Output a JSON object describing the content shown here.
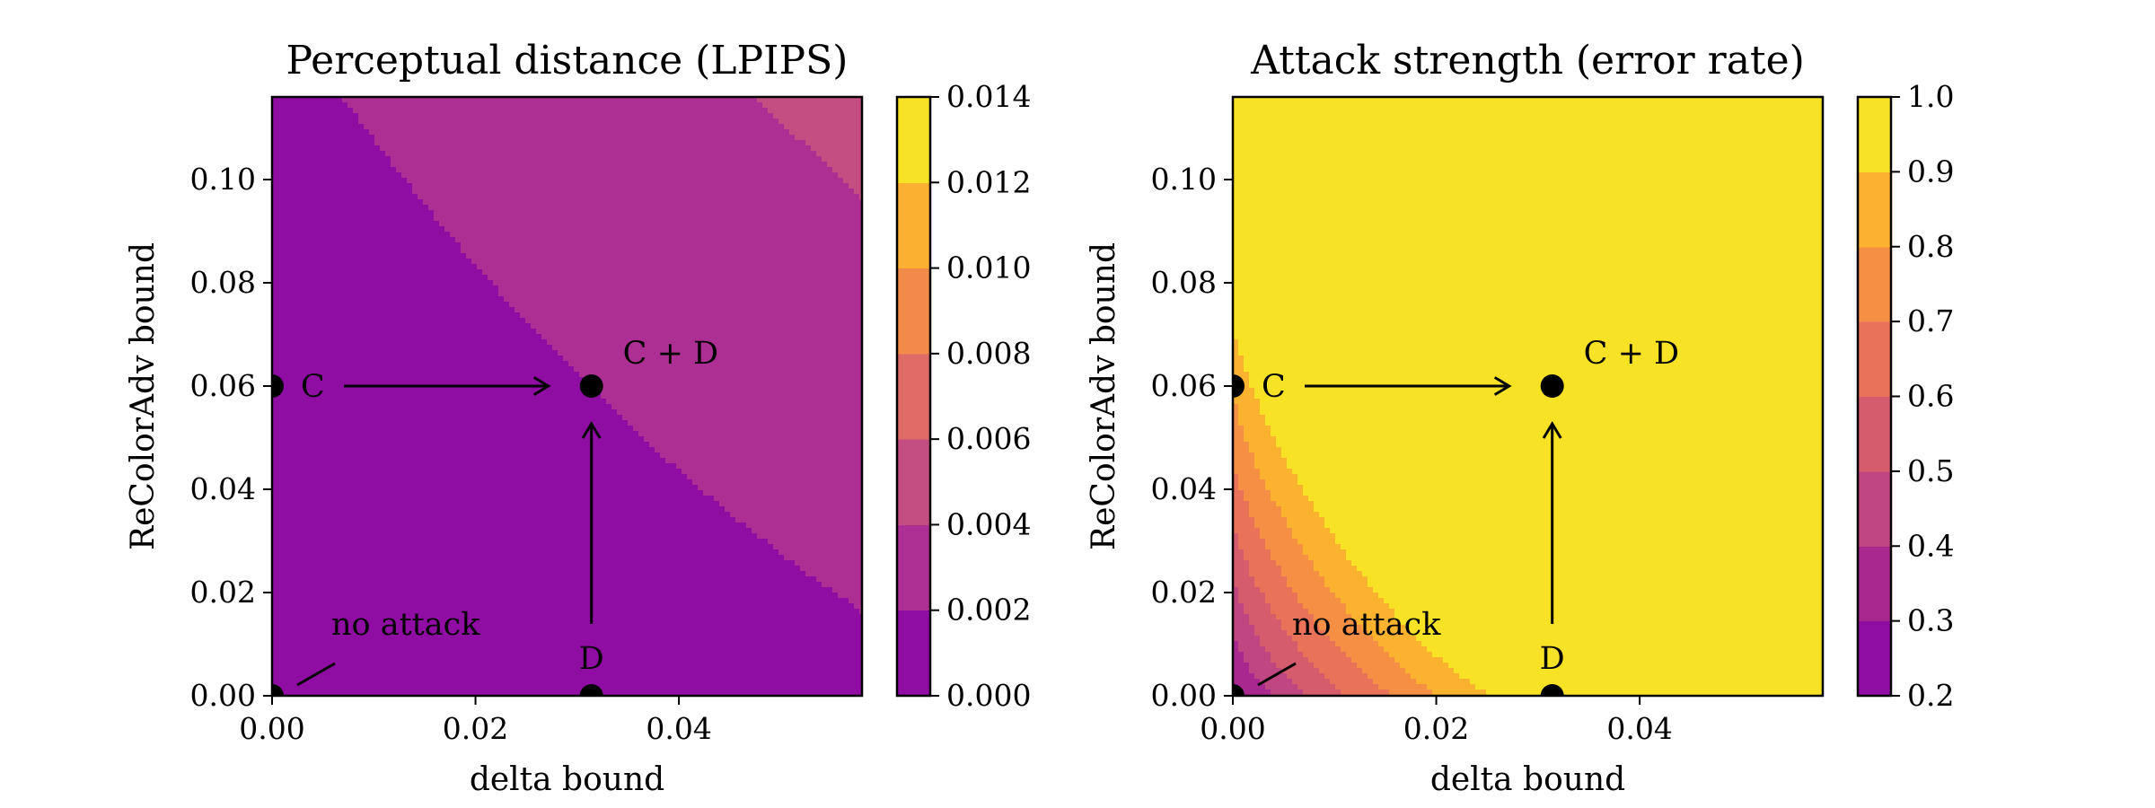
{
  "chart_data": [
    {
      "type": "contour",
      "title": "Perceptual distance (LPIPS)",
      "xlabel": "delta bound",
      "ylabel": "ReColorAdv bound",
      "xlim": [
        0,
        0.058
      ],
      "ylim": [
        0,
        0.116
      ],
      "xticks": [
        "0.00",
        "0.02",
        "0.04"
      ],
      "xtick_values": [
        0,
        0.02,
        0.04
      ],
      "yticks": [
        "0.00",
        "0.02",
        "0.04",
        "0.06",
        "0.08",
        "0.10"
      ],
      "ytick_values": [
        0,
        0.02,
        0.04,
        0.06,
        0.08,
        0.1
      ],
      "colorbar": {
        "levels": [
          0.0,
          0.002,
          0.004,
          0.006,
          0.008,
          0.01,
          0.012,
          0.014
        ],
        "ticks": [
          "0.000",
          "0.002",
          "0.004",
          "0.006",
          "0.008",
          "0.010",
          "0.012",
          "0.014"
        ],
        "colors": [
          "#8f0da3",
          "#ae2f94",
          "#c44d82",
          "#de6b66",
          "#f28b49",
          "#fbb031",
          "#f7e225"
        ]
      },
      "contour_model": {
        "base": 0.00083,
        "x_coef": 0.061,
        "y_coef": 0.0433,
        "x_power": 1.5,
        "y_power": 1.8,
        "cross": 0.3
      },
      "points": [
        {
          "label": "no attack",
          "x": 0,
          "y": 0
        },
        {
          "label": "C",
          "x": 0,
          "y": 0.06
        },
        {
          "label": "D",
          "x": 0.0314,
          "y": 0
        },
        {
          "label": "C + D",
          "x": 0.0314,
          "y": 0.06
        }
      ],
      "arrows": [
        {
          "from": "C",
          "to": "C + D"
        },
        {
          "from": "D",
          "to": "C + D"
        }
      ]
    },
    {
      "type": "contour",
      "title": "Attack strength (error rate)",
      "xlabel": "delta bound",
      "ylabel": "ReColorAdv bound",
      "xlim": [
        0,
        0.058
      ],
      "ylim": [
        0,
        0.116
      ],
      "xticks": [
        "0.00",
        "0.02",
        "0.04"
      ],
      "xtick_values": [
        0,
        0.02,
        0.04
      ],
      "yticks": [
        "0.00",
        "0.02",
        "0.04",
        "0.06",
        "0.08",
        "0.10"
      ],
      "ytick_values": [
        0,
        0.02,
        0.04,
        0.06,
        0.08,
        0.1
      ],
      "colorbar": {
        "levels": [
          0.2,
          0.3,
          0.4,
          0.5,
          0.6,
          0.7,
          0.8,
          0.9,
          1.0
        ],
        "ticks": [
          "0.2",
          "0.3",
          "0.4",
          "0.5",
          "0.6",
          "0.7",
          "0.8",
          "0.9",
          "1.0"
        ],
        "colors": [
          "#8f0da3",
          "#a8288f",
          "#bf4682",
          "#d45c6d",
          "#e87359",
          "#f58f43",
          "#fbb32f",
          "#f7e225"
        ]
      },
      "contour_model": {
        "base": 0.215,
        "x_coef": 10.5,
        "y_coef": 5.3,
        "x_power": 0.75,
        "y_power": 0.78,
        "cross": 0
      },
      "points": [
        {
          "label": "no attack",
          "x": 0,
          "y": 0
        },
        {
          "label": "C",
          "x": 0,
          "y": 0.06
        },
        {
          "label": "D",
          "x": 0.0314,
          "y": 0
        },
        {
          "label": "C + D",
          "x": 0.0314,
          "y": 0.06
        }
      ],
      "arrows": [
        {
          "from": "C",
          "to": "C + D"
        },
        {
          "from": "D",
          "to": "C + D"
        }
      ]
    }
  ]
}
